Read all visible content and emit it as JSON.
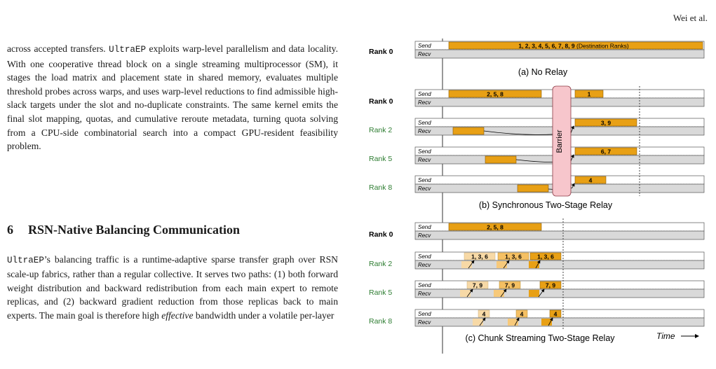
{
  "header": {
    "running_head": "Wei et al."
  },
  "body_text": {
    "p1_part1": "across accepted transfers. ",
    "p1_mono1": "UltraEP",
    "p1_part2": " exploits warp-level parallelism and data locality. With one cooperative thread block on a single streaming multiprocessor (SM), it stages the load matrix and placement state in shared memory, evaluates multiple threshold probes across warps, and uses warp-level reductions to find admissible high-slack targets under the slot and no-duplicate constraints. The same kernel emits the final slot mapping, quotas, and cumulative reroute metadata, turning quota solving from a CPU-side combinatorial search into a compact GPU-resident feasibility problem.",
    "section_number": "6",
    "section_title": "RSN-Native Balancing Communication",
    "p2_mono1": "UltraEP",
    "p2_part1": "’s balancing traffic is a runtime-adaptive sparse transfer graph over RSN scale-up fabrics, rather than a regular collective. It serves two paths: (1) both forward weight distribution and backward redistribution from each main expert to remote replicas, and (2) backward gradient reduction from those replicas back to main experts. The main goal is therefore high ",
    "p2_em": "effective",
    "p2_part2": " bandwidth under a volatile per-layer"
  },
  "figure": {
    "labels": {
      "send": "Send",
      "recv": "Recv",
      "barrier": "Barrier",
      "time": "Time"
    },
    "colors": {
      "orange": "#E8A015",
      "light_orange": "#F7D9A6",
      "gray": "#D9D9D9",
      "rank_green": "#2E7D32"
    },
    "panel_a": {
      "caption": "(a) No Relay",
      "rank": "Rank 0",
      "bar_label": "1, 2, 3, 4, 5, 6, 7, 8, 9",
      "bar_suffix": " (Destination Ranks)"
    },
    "panel_b": {
      "caption": "(b) Synchronous Two-Stage Relay",
      "ranks": [
        "Rank 0",
        "Rank 2",
        "Rank 5",
        "Rank 8"
      ],
      "labels": [
        "2, 5, 8",
        "1",
        "3, 9",
        "6, 7",
        "4"
      ]
    },
    "panel_c": {
      "caption": "(c) Chunk Streaming Two-Stage Relay",
      "ranks": [
        "Rank 0",
        "Rank 2",
        "Rank 5",
        "Rank 8"
      ],
      "rank0_label": "2, 5, 8",
      "rank2_label": "1, 3, 6",
      "rank5_label": "7, 9",
      "rank8_label": "4"
    }
  }
}
